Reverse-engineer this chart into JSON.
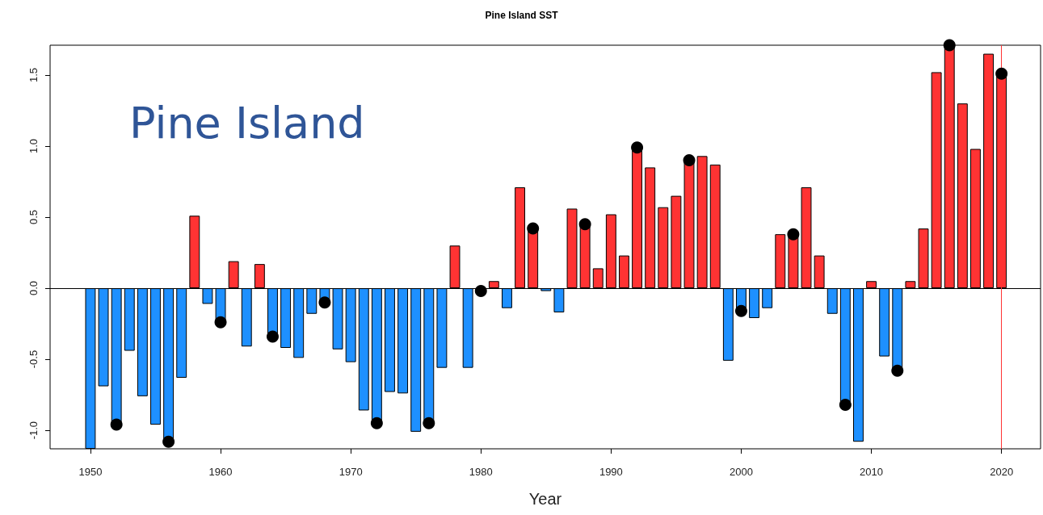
{
  "chart_data": {
    "type": "bar",
    "title": "Pine Island SST",
    "xlabel": "Year",
    "annotations": [
      "Pine Island"
    ],
    "x": [
      1950,
      1951,
      1952,
      1953,
      1954,
      1955,
      1956,
      1957,
      1958,
      1959,
      1960,
      1961,
      1962,
      1963,
      1964,
      1965,
      1966,
      1967,
      1968,
      1969,
      1970,
      1971,
      1972,
      1973,
      1974,
      1975,
      1976,
      1977,
      1978,
      1979,
      1980,
      1981,
      1982,
      1983,
      1984,
      1985,
      1986,
      1987,
      1988,
      1989,
      1990,
      1991,
      1992,
      1993,
      1994,
      1995,
      1996,
      1997,
      1998,
      1999,
      2000,
      2001,
      2002,
      2003,
      2004,
      2005,
      2006,
      2007,
      2008,
      2009,
      2010,
      2011,
      2012,
      2013,
      2014,
      2015,
      2016,
      2017,
      2018,
      2019,
      2020
    ],
    "series": [
      {
        "values": [
          -1.13,
          -0.69,
          -0.96,
          -0.44,
          -0.76,
          -0.96,
          -1.08,
          -0.63,
          0.51,
          -0.11,
          -0.24,
          0.19,
          -0.41,
          0.17,
          -0.34,
          -0.42,
          -0.49,
          -0.18,
          -0.1,
          -0.43,
          -0.52,
          -0.86,
          -0.95,
          -0.73,
          -0.74,
          -1.01,
          -0.95,
          -0.56,
          0.3,
          -0.56,
          null,
          0.05,
          -0.14,
          0.71,
          0.42,
          -0.02,
          -0.17,
          0.56,
          0.45,
          0.14,
          0.52,
          0.23,
          0.99,
          0.85,
          0.57,
          0.65,
          0.9,
          0.93,
          0.87,
          -0.51,
          -0.16,
          -0.21,
          -0.14,
          0.38,
          0.38,
          0.71,
          0.23,
          -0.18,
          -0.82,
          -1.08,
          0.05,
          -0.48,
          -0.58,
          0.05,
          0.42,
          1.52,
          1.71,
          1.3,
          0.98,
          1.65,
          1.51
        ],
        "colors": [
          "#1e90ff",
          "#1e90ff",
          "#1e90ff",
          "#1e90ff",
          "#1e90ff",
          "#1e90ff",
          "#1e90ff",
          "#1e90ff",
          "#ff3333",
          "#1e90ff",
          "#1e90ff",
          "#ff3333",
          "#1e90ff",
          "#ff3333",
          "#1e90ff",
          "#1e90ff",
          "#1e90ff",
          "#1e90ff",
          "#1e90ff",
          "#1e90ff",
          "#1e90ff",
          "#1e90ff",
          "#1e90ff",
          "#1e90ff",
          "#1e90ff",
          "#1e90ff",
          "#1e90ff",
          "#1e90ff",
          "#ff3333",
          "#1e90ff",
          "#1e90ff",
          "#ff3333",
          "#1e90ff",
          "#ff3333",
          "#ff3333",
          "#1e90ff",
          "#1e90ff",
          "#ff3333",
          "#ff3333",
          "#ff3333",
          "#ff3333",
          "#ff3333",
          "#ff3333",
          "#ff3333",
          "#ff3333",
          "#ff3333",
          "#ff3333",
          "#ff3333",
          "#ff3333",
          "#1e90ff",
          "#1e90ff",
          "#1e90ff",
          "#1e90ff",
          "#ff3333",
          "#ff3333",
          "#ff3333",
          "#ff3333",
          "#1e90ff",
          "#1e90ff",
          "#1e90ff",
          "#ff3333",
          "#1e90ff",
          "#1e90ff",
          "#ff3333",
          "#ff3333",
          "#ff3333",
          "#ff3333",
          "#ff3333",
          "#ff3333",
          "#ff3333",
          "#ff3333"
        ]
      },
      {
        "type": "scatter",
        "color": "#000000",
        "marker": "circle",
        "x": [
          1952,
          1956,
          1960,
          1964,
          1968,
          1972,
          1976,
          1980,
          1984,
          1988,
          1992,
          1996,
          2000,
          2004,
          2008,
          2012,
          2016,
          2020
        ],
        "values": [
          -0.96,
          -1.08,
          -0.24,
          -0.34,
          -0.1,
          -0.95,
          -0.95,
          -0.02,
          0.42,
          0.45,
          0.99,
          0.9,
          -0.16,
          0.38,
          -0.82,
          -0.58,
          1.71,
          1.51
        ]
      }
    ],
    "xlim": [
      1946.9,
      2023
    ],
    "xticks": [
      1950,
      1960,
      1970,
      1980,
      1990,
      2000,
      2010,
      2020
    ],
    "ylim": [
      -1.13,
      1.71
    ],
    "yticks": [
      {
        "value": -1,
        "label": "-1.0"
      },
      {
        "value": -0.5,
        "label": "-0.5"
      },
      {
        "value": 0,
        "label": "0.0"
      },
      {
        "value": 0.5,
        "label": "0.5"
      },
      {
        "value": 1,
        "label": "1.0"
      },
      {
        "value": 1.5,
        "label": "1.5"
      }
    ],
    "ref_lines": [
      {
        "axis": "y",
        "value": 0,
        "color": "#000000"
      },
      {
        "axis": "x",
        "value": 2020,
        "color": "#ff3333"
      }
    ]
  }
}
